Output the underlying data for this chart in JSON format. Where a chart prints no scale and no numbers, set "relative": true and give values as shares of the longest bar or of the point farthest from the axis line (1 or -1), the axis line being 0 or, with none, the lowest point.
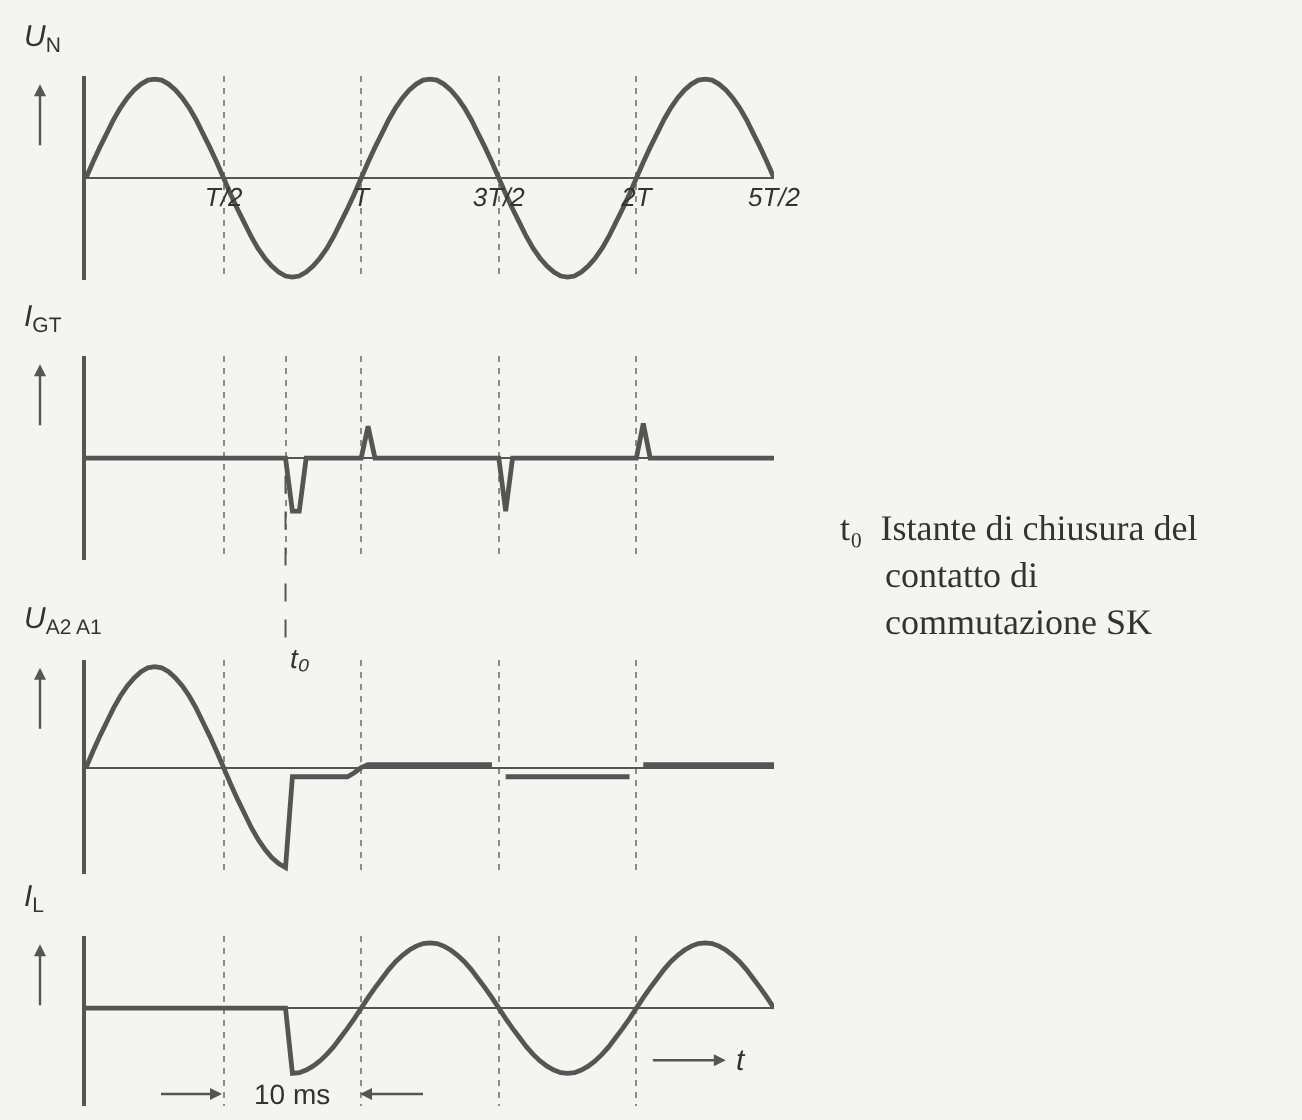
{
  "chart_data": [
    {
      "type": "line",
      "relative": true,
      "ylabel": "U$_{N}$",
      "grid": "x",
      "tick_labels": "x",
      "categories": [
        null,
        null,
        null,
        null,
        null,
        null,
        null,
        null,
        null,
        null,
        null,
        null,
        null,
        null,
        null,
        null,
        null,
        null,
        null,
        null,
        "T/2",
        null,
        null,
        null,
        null,
        null,
        null,
        null,
        null,
        null,
        null,
        null,
        null,
        null,
        null,
        null,
        null,
        null,
        null,
        null,
        "T",
        null,
        null,
        null,
        null,
        null,
        null,
        null,
        null,
        null,
        null,
        null,
        null,
        null,
        null,
        null,
        null,
        null,
        null,
        null,
        "3T/2",
        null,
        null,
        null,
        null,
        null,
        null,
        null,
        null,
        null,
        null,
        null,
        null,
        null,
        null,
        null,
        null,
        null,
        null,
        null,
        "2T",
        null,
        null,
        null,
        null,
        null,
        null,
        null,
        null,
        null,
        null,
        null,
        null,
        null,
        null,
        null,
        null,
        null,
        null,
        null,
        "5T/2"
      ],
      "series": [
        {
          "color": "#555555",
          "values": [
            0,
            0.16,
            0.31,
            0.45,
            0.59,
            0.71,
            0.81,
            0.89,
            0.95,
            0.99,
            1,
            0.99,
            0.95,
            0.89,
            0.81,
            0.71,
            0.59,
            0.45,
            0.31,
            0.16,
            0,
            -0.16,
            -0.31,
            -0.45,
            -0.59,
            -0.71,
            -0.81,
            -0.89,
            -0.95,
            -0.99,
            -1,
            -0.99,
            -0.95,
            -0.89,
            -0.81,
            -0.71,
            -0.59,
            -0.45,
            -0.31,
            -0.16,
            0,
            0.16,
            0.31,
            0.45,
            0.59,
            0.71,
            0.81,
            0.89,
            0.95,
            0.99,
            1,
            0.99,
            0.95,
            0.89,
            0.81,
            0.71,
            0.59,
            0.45,
            0.31,
            0.16,
            0,
            -0.16,
            -0.31,
            -0.45,
            -0.59,
            -0.71,
            -0.81,
            -0.89,
            -0.95,
            -0.99,
            -1,
            -0.99,
            -0.95,
            -0.89,
            -0.81,
            -0.71,
            -0.59,
            -0.45,
            -0.31,
            -0.16,
            0,
            0.16,
            0.31,
            0.45,
            0.59,
            0.71,
            0.81,
            0.89,
            0.95,
            0.99,
            1,
            0.99,
            0.95,
            0.89,
            0.81,
            0.71,
            0.59,
            0.45,
            0.31,
            0.16,
            0
          ]
        }
      ]
    },
    {
      "type": "line",
      "relative": true,
      "ylabel": "I$_{GT}$",
      "grid": "x",
      "tick_labels": false,
      "categories": [
        null,
        null,
        null,
        null,
        null,
        null,
        null,
        null,
        null,
        null,
        null,
        null,
        null,
        null,
        null,
        null,
        null,
        null,
        null,
        null,
        "T/2",
        null,
        null,
        null,
        null,
        null,
        null,
        null,
        null,
        "t₀",
        null,
        null,
        null,
        null,
        null,
        null,
        null,
        null,
        null,
        null,
        "T",
        null,
        null,
        null,
        null,
        null,
        null,
        null,
        null,
        null,
        null,
        null,
        null,
        null,
        null,
        null,
        null,
        null,
        null,
        null,
        "3T/2",
        null,
        null,
        null,
        null,
        null,
        null,
        null,
        null,
        null,
        null,
        null,
        null,
        null,
        null,
        null,
        null,
        null,
        null,
        null,
        "2T",
        null,
        null,
        null,
        null,
        null,
        null,
        null,
        null,
        null,
        null,
        null,
        null,
        null,
        null,
        null,
        null,
        null,
        null,
        null,
        "5T/2"
      ],
      "series": [
        {
          "color": "#555555",
          "values": [
            0,
            0,
            0,
            0,
            0,
            0,
            0,
            0,
            0,
            0,
            0,
            0,
            0,
            0,
            0,
            0,
            0,
            0,
            0,
            0,
            0,
            0,
            0,
            0,
            0,
            0,
            0,
            0,
            0,
            0,
            -1,
            -1,
            0,
            0,
            0,
            0,
            0,
            0,
            0,
            0,
            0,
            0.6,
            0,
            0,
            0,
            0,
            0,
            0,
            0,
            0,
            0,
            0,
            0,
            0,
            0,
            0,
            0,
            0,
            0,
            0,
            0,
            -1,
            0,
            0,
            0,
            0,
            0,
            0,
            0,
            0,
            0,
            0,
            0,
            0,
            0,
            0,
            0,
            0,
            0,
            0,
            0,
            0.65,
            0,
            0,
            0,
            0,
            0,
            0,
            0,
            0,
            0,
            0,
            0,
            0,
            0,
            0,
            0,
            0,
            0,
            0,
            0
          ]
        }
      ],
      "ref_lines": [
        {
          "axis": "x",
          "value": "t₀",
          "line_style": "dashed"
        }
      ],
      "annotations": [
        "t₀  Istante di chiusura del\n     contatto di\n     commutazione SK"
      ]
    },
    {
      "type": "line",
      "relative": true,
      "ylabel": "U$_{A2 A1}$",
      "grid": "x",
      "tick_labels": false,
      "categories": [
        null,
        null,
        null,
        null,
        null,
        null,
        null,
        null,
        null,
        null,
        null,
        null,
        null,
        null,
        null,
        null,
        null,
        null,
        null,
        null,
        "T/2",
        null,
        null,
        null,
        null,
        null,
        null,
        null,
        null,
        null,
        null,
        null,
        null,
        null,
        null,
        null,
        null,
        null,
        null,
        null,
        "T",
        null,
        null,
        null,
        null,
        null,
        null,
        null,
        null,
        null,
        null,
        null,
        null,
        null,
        null,
        null,
        null,
        null,
        null,
        null,
        "3T/2",
        null,
        null,
        null,
        null,
        null,
        null,
        null,
        null,
        null,
        null,
        null,
        null,
        null,
        null,
        null,
        null,
        null,
        null,
        null,
        "2T",
        null,
        null,
        null,
        null,
        null,
        null,
        null,
        null,
        null,
        null,
        null,
        null,
        null,
        null,
        null,
        null,
        null,
        null,
        null,
        "5T/2"
      ],
      "series": [
        {
          "color": "#555555",
          "values": [
            0,
            0.16,
            0.31,
            0.45,
            0.59,
            0.71,
            0.81,
            0.89,
            0.95,
            0.99,
            1,
            0.99,
            0.95,
            0.89,
            0.81,
            0.71,
            0.59,
            0.45,
            0.31,
            0.16,
            0,
            -0.16,
            -0.31,
            -0.45,
            -0.59,
            -0.71,
            -0.81,
            -0.89,
            -0.95,
            -0.99,
            -0.09,
            -0.09,
            -0.09,
            -0.09,
            -0.09,
            -0.09,
            -0.09,
            -0.09,
            -0.09,
            -0.05,
            0,
            0.03,
            0.03,
            0.03,
            0.03,
            0.03,
            0.03,
            0.03,
            0.03,
            0.03,
            0.03,
            0.03,
            0.03,
            0.03,
            0.03,
            0.03,
            0.03,
            0.03,
            0.03,
            0.03,
            null,
            -0.09,
            -0.09,
            -0.09,
            -0.09,
            -0.09,
            -0.09,
            -0.09,
            -0.09,
            -0.09,
            -0.09,
            -0.09,
            -0.09,
            -0.09,
            -0.09,
            -0.09,
            -0.09,
            -0.09,
            -0.09,
            -0.09,
            null,
            0.03,
            0.03,
            0.03,
            0.03,
            0.03,
            0.03,
            0.03,
            0.03,
            0.03,
            0.03,
            0.03,
            0.03,
            0.03,
            0.03,
            0.03,
            0.03,
            0.03,
            0.03,
            0.03,
            0.03
          ]
        }
      ]
    },
    {
      "type": "line",
      "relative": true,
      "ylabel": "I$_{L}$",
      "xlabel": "t",
      "grid": "x",
      "tick_labels": false,
      "categories": [
        null,
        null,
        null,
        null,
        null,
        null,
        null,
        null,
        null,
        null,
        null,
        null,
        null,
        null,
        null,
        null,
        null,
        null,
        null,
        null,
        "T/2",
        null,
        null,
        null,
        null,
        null,
        null,
        null,
        null,
        null,
        null,
        null,
        null,
        null,
        null,
        null,
        null,
        null,
        null,
        null,
        "T",
        null,
        null,
        null,
        null,
        null,
        null,
        null,
        null,
        null,
        null,
        null,
        null,
        null,
        null,
        null,
        null,
        null,
        null,
        null,
        "3T/2",
        null,
        null,
        null,
        null,
        null,
        null,
        null,
        null,
        null,
        null,
        null,
        null,
        null,
        null,
        null,
        null,
        null,
        null,
        null,
        "2T",
        null,
        null,
        null,
        null,
        null,
        null,
        null,
        null,
        null,
        null,
        null,
        null,
        null,
        null,
        null,
        null,
        null,
        null,
        null,
        "5T/2"
      ],
      "series": [
        {
          "color": "#555555",
          "values": [
            0,
            0,
            0,
            0,
            0,
            0,
            0,
            0,
            0,
            0,
            0,
            0,
            0,
            0,
            0,
            0,
            0,
            0,
            0,
            0,
            0,
            0,
            0,
            0,
            0,
            0,
            0,
            0,
            0,
            0,
            -1,
            -0.99,
            -0.95,
            -0.89,
            -0.81,
            -0.71,
            -0.59,
            -0.45,
            -0.31,
            -0.16,
            0,
            0.16,
            0.31,
            0.45,
            0.59,
            0.71,
            0.81,
            0.89,
            0.95,
            0.99,
            1,
            0.99,
            0.95,
            0.89,
            0.81,
            0.71,
            0.59,
            0.45,
            0.31,
            0.16,
            0,
            -0.16,
            -0.31,
            -0.45,
            -0.59,
            -0.71,
            -0.81,
            -0.89,
            -0.95,
            -0.99,
            -1,
            -0.99,
            -0.95,
            -0.89,
            -0.81,
            -0.71,
            -0.59,
            -0.45,
            -0.31,
            -0.16,
            0,
            0.16,
            0.31,
            0.45,
            0.59,
            0.71,
            0.81,
            0.89,
            0.95,
            0.99,
            1,
            0.99,
            0.95,
            0.89,
            0.81,
            0.71,
            0.59,
            0.45,
            0.31,
            0.16,
            0
          ]
        }
      ],
      "annotations": [
        "10 ms"
      ]
    }
  ]
}
